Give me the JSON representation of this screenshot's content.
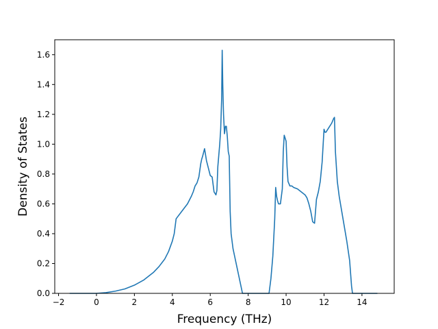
{
  "chart_data": {
    "type": "line",
    "title": "",
    "xlabel": "Frequency (THz)",
    "ylabel": "Density of States",
    "xlim": [
      -2.2,
      15.7
    ],
    "ylim": [
      0.0,
      1.7
    ],
    "xticks": [
      -2,
      0,
      2,
      4,
      6,
      8,
      10,
      12,
      14
    ],
    "xtick_labels": [
      "−2",
      "0",
      "2",
      "4",
      "6",
      "8",
      "10",
      "12",
      "14"
    ],
    "yticks": [
      0.0,
      0.2,
      0.4,
      0.6,
      0.8,
      1.0,
      1.2,
      1.4,
      1.6
    ],
    "ytick_labels": [
      "0.0",
      "0.2",
      "0.4",
      "0.6",
      "0.8",
      "1.0",
      "1.2",
      "1.4",
      "1.6"
    ],
    "grid": false,
    "colors": {
      "line": "#1f77b4",
      "axes": "#000000"
    },
    "series": [
      {
        "x": [
          -1.4,
          0.0,
          0.5,
          1.0,
          1.5,
          2.0,
          2.5,
          3.0,
          3.3,
          3.6,
          3.8,
          4.0,
          4.1,
          4.2,
          4.5,
          4.8,
          5.0,
          5.1,
          5.2,
          5.3,
          5.4,
          5.5,
          5.55,
          5.6,
          5.7,
          5.8,
          5.9,
          6.0,
          6.1,
          6.2,
          6.3,
          6.35,
          6.4,
          6.5,
          6.55,
          6.6,
          6.63,
          6.66,
          6.7,
          6.75,
          6.8,
          6.85,
          6.9,
          6.95,
          7.0,
          7.05,
          7.1,
          7.2,
          7.3,
          7.4,
          7.5,
          7.6,
          7.7,
          7.8,
          7.85,
          8.5,
          9.1,
          9.2,
          9.3,
          9.4,
          9.45,
          9.5,
          9.55,
          9.6,
          9.7,
          9.8,
          9.85,
          9.9,
          10.0,
          10.05,
          10.1,
          10.2,
          10.3,
          10.4,
          10.6,
          10.8,
          11.0,
          11.1,
          11.2,
          11.3,
          11.4,
          11.5,
          11.55,
          11.6,
          11.7,
          11.8,
          11.9,
          12.0,
          12.05,
          12.1,
          12.2,
          12.3,
          12.4,
          12.5,
          12.55,
          12.6,
          12.65,
          12.7,
          12.8,
          13.0,
          13.2,
          13.35,
          13.45,
          13.5,
          14.0,
          14.8
        ],
        "y": [
          0.0,
          0.0,
          0.005,
          0.015,
          0.03,
          0.055,
          0.09,
          0.14,
          0.18,
          0.23,
          0.28,
          0.35,
          0.4,
          0.5,
          0.55,
          0.6,
          0.65,
          0.68,
          0.72,
          0.74,
          0.78,
          0.87,
          0.9,
          0.92,
          0.97,
          0.89,
          0.84,
          0.79,
          0.78,
          0.68,
          0.66,
          0.69,
          0.85,
          1.0,
          1.1,
          1.3,
          1.63,
          1.4,
          1.2,
          1.07,
          1.12,
          1.12,
          1.05,
          0.95,
          0.92,
          0.55,
          0.4,
          0.3,
          0.24,
          0.18,
          0.12,
          0.06,
          0.0,
          0.0,
          0.0,
          0.0,
          0.0,
          0.1,
          0.25,
          0.5,
          0.71,
          0.65,
          0.62,
          0.6,
          0.6,
          0.7,
          0.95,
          1.06,
          1.02,
          0.85,
          0.75,
          0.72,
          0.72,
          0.71,
          0.7,
          0.68,
          0.66,
          0.64,
          0.6,
          0.55,
          0.48,
          0.47,
          0.55,
          0.63,
          0.68,
          0.75,
          0.88,
          1.1,
          1.08,
          1.08,
          1.1,
          1.12,
          1.14,
          1.17,
          1.18,
          0.95,
          0.85,
          0.75,
          0.65,
          0.5,
          0.35,
          0.22,
          0.05,
          0.0,
          0.0,
          0.0
        ]
      }
    ]
  }
}
